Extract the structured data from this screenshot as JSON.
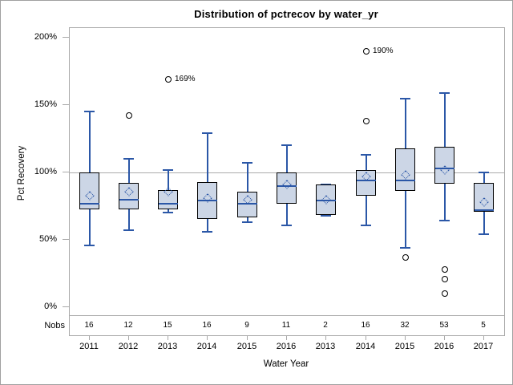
{
  "chart_data": {
    "type": "box",
    "title": "Distribution of pctrecov by water_yr",
    "xlabel": "Water Year",
    "ylabel": "Pct Recovery",
    "nobs_header": "Nobs",
    "grid": false,
    "legend": null,
    "reference_line": 100,
    "ylim": [
      -6,
      207
    ],
    "yticks": [
      {
        "value": 0,
        "label": "0%"
      },
      {
        "value": 50,
        "label": "50%"
      },
      {
        "value": 100,
        "label": "100%"
      },
      {
        "value": 150,
        "label": "150%"
      },
      {
        "value": 200,
        "label": "200%"
      }
    ],
    "categories": [
      "2011",
      "2012",
      "2013",
      "2014",
      "2015",
      "2016",
      "2013",
      "2014",
      "2015",
      "2016",
      "2017"
    ],
    "nobs": [
      16,
      12,
      15,
      16,
      9,
      11,
      2,
      16,
      32,
      53,
      5
    ],
    "boxes": [
      {
        "category": "2011",
        "nobs": 16,
        "whisker_low": 46,
        "q1": 72,
        "median": 77,
        "mean": 83,
        "q3": 100,
        "whisker_high": 145,
        "outliers": []
      },
      {
        "category": "2012",
        "nobs": 12,
        "whisker_low": 57,
        "q1": 72,
        "median": 80,
        "mean": 86,
        "q3": 92,
        "whisker_high": 110,
        "outliers": [
          {
            "value": 142,
            "label": ""
          }
        ]
      },
      {
        "category": "2013",
        "nobs": 15,
        "whisker_low": 70,
        "q1": 72,
        "median": 77,
        "mean": 86,
        "q3": 87,
        "whisker_high": 102,
        "outliers": [
          {
            "value": 169,
            "label": "169%"
          }
        ]
      },
      {
        "category": "2014",
        "nobs": 16,
        "whisker_low": 56,
        "q1": 65,
        "median": 79,
        "mean": 81,
        "q3": 93,
        "whisker_high": 129,
        "outliers": []
      },
      {
        "category": "2015",
        "nobs": 9,
        "whisker_low": 63,
        "q1": 66,
        "median": 77,
        "mean": 80,
        "q3": 86,
        "whisker_high": 107,
        "outliers": []
      },
      {
        "category": "2016",
        "nobs": 11,
        "whisker_low": 61,
        "q1": 76,
        "median": 90,
        "mean": 91,
        "q3": 100,
        "whisker_high": 120,
        "outliers": []
      },
      {
        "category": "2013",
        "nobs": 2,
        "whisker_low": 68,
        "q1": 68,
        "median": 79,
        "mean": 80,
        "q3": 91,
        "whisker_high": 91,
        "outliers": []
      },
      {
        "category": "2014",
        "nobs": 16,
        "whisker_low": 61,
        "q1": 82,
        "median": 94,
        "mean": 97,
        "q3": 102,
        "whisker_high": 113,
        "outliers": [
          {
            "value": 190,
            "label": "190%"
          },
          {
            "value": 138,
            "label": ""
          }
        ]
      },
      {
        "category": "2015",
        "nobs": 32,
        "whisker_low": 44,
        "q1": 86,
        "median": 94,
        "mean": 98,
        "q3": 118,
        "whisker_high": 155,
        "outliers": [
          {
            "value": 37,
            "label": ""
          }
        ]
      },
      {
        "category": "2016",
        "nobs": 53,
        "whisker_low": 64,
        "q1": 91,
        "median": 103,
        "mean": 102,
        "q3": 119,
        "whisker_high": 159,
        "outliers": [
          {
            "value": 28,
            "label": ""
          },
          {
            "value": 21,
            "label": ""
          },
          {
            "value": 10,
            "label": ""
          }
        ]
      },
      {
        "category": "2017",
        "nobs": 5,
        "whisker_low": 54,
        "q1": 70,
        "median": 72,
        "mean": 78,
        "q3": 92,
        "whisker_high": 100,
        "outliers": []
      }
    ]
  },
  "colors": {
    "background": "#ffffff",
    "outer_border": "#a0a0a0",
    "axis_frame": "#a9a9a9",
    "reference_line": "#ababab",
    "box_fill": "#ccd6e6",
    "box_border": "#000000",
    "whisker": "#2b57a7",
    "median": "#2b57a7",
    "mean_marker": "#2b57a7",
    "outlier": "#000000",
    "text": "#000000"
  }
}
